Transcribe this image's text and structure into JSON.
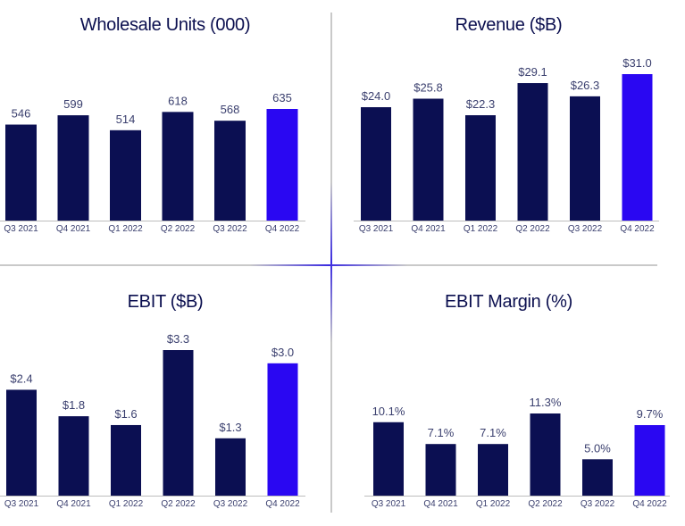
{
  "colors": {
    "bar": "#0b0f52",
    "highlight": "#2a07f2",
    "axis": "#bdbdbd"
  },
  "chart_data": [
    {
      "type": "bar",
      "title": "Wholesale Units (000)",
      "categories": [
        "Q3 2021",
        "Q4 2021",
        "Q1 2022",
        "Q2 2022",
        "Q3 2022",
        "Q4 2022"
      ],
      "values": [
        546,
        599,
        514,
        618,
        568,
        635
      ],
      "value_labels": [
        "546",
        "599",
        "514",
        "618",
        "568",
        "635"
      ],
      "highlight_index": 5
    },
    {
      "type": "bar",
      "title": "Revenue ($B)",
      "categories": [
        "Q3 2021",
        "Q4 2021",
        "Q1 2022",
        "Q2 2022",
        "Q3 2022",
        "Q4 2022"
      ],
      "values": [
        24.0,
        25.8,
        22.3,
        29.1,
        26.3,
        31.0
      ],
      "value_labels": [
        "$24.0",
        "$25.8",
        "$22.3",
        "$29.1",
        "$26.3",
        "$31.0"
      ],
      "highlight_index": 5
    },
    {
      "type": "bar",
      "title": "EBIT ($B)",
      "categories": [
        "Q3 2021",
        "Q4 2021",
        "Q1 2022",
        "Q2 2022",
        "Q3 2022",
        "Q4 2022"
      ],
      "values": [
        2.4,
        1.8,
        1.6,
        3.3,
        1.3,
        3.0
      ],
      "value_labels": [
        "$2.4",
        "$1.8",
        "$1.6",
        "$3.3",
        "$1.3",
        "$3.0"
      ],
      "highlight_index": 5
    },
    {
      "type": "bar",
      "title": "EBIT Margin (%)",
      "categories": [
        "Q3 2021",
        "Q4 2021",
        "Q1 2022",
        "Q2 2022",
        "Q3 2022",
        "Q4 2022"
      ],
      "values": [
        10.1,
        7.1,
        7.1,
        11.3,
        5.0,
        9.7
      ],
      "value_labels": [
        "10.1%",
        "7.1%",
        "7.1%",
        "11.3%",
        "5.0%",
        "9.7%"
      ],
      "highlight_index": 5
    }
  ]
}
